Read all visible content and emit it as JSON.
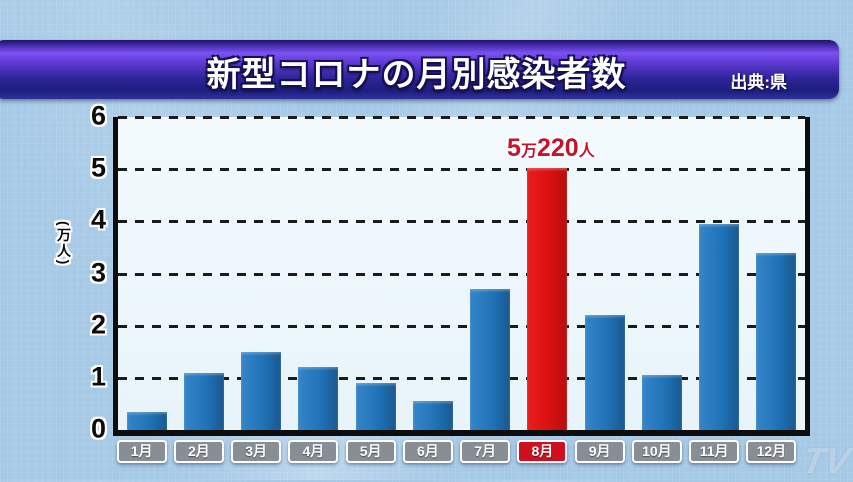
{
  "header": {
    "title": "新型コロナの月別感染者数",
    "source": "出典:県"
  },
  "chart_data": {
    "type": "bar",
    "title": "新型コロナの月別感染者数",
    "categories": [
      "1月",
      "2月",
      "3月",
      "4月",
      "5月",
      "6月",
      "7月",
      "8月",
      "9月",
      "10月",
      "11月",
      "12月"
    ],
    "values": [
      0.35,
      1.1,
      1.5,
      1.2,
      0.9,
      0.55,
      2.7,
      5.022,
      2.2,
      1.05,
      3.95,
      3.4
    ],
    "unit_label": "(万人)",
    "ylabel": "万人",
    "ylim": [
      0,
      6
    ],
    "yticks": [
      0,
      1,
      2,
      3,
      4,
      5,
      6
    ],
    "grid": "horizontal-dashed",
    "legend": "none",
    "annotation": {
      "category": "8月",
      "text": "5万220人"
    },
    "highlight_category": "8月",
    "bar_color": "#2173b8",
    "highlight_color": "#d91111",
    "plot_background": "#edf6fb"
  },
  "watermark": {
    "text": "TV"
  }
}
